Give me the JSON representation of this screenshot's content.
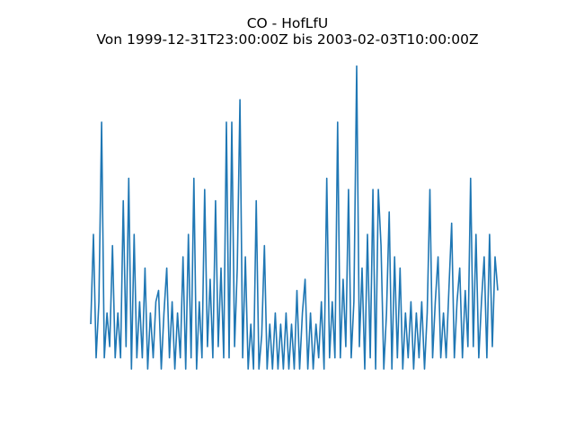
{
  "chart_data": {
    "type": "line",
    "title": "CO - HofLfU",
    "subtitle": "Von 1999-12-31T23:00:00Z bis 2003-02-03T10:00:00Z",
    "x_start": "1999-12-31T23:00:00Z",
    "x_end": "2003-02-03T10:00:00Z",
    "axes_visible": false,
    "grid": false,
    "color": "#1f77b4",
    "ylim": [
      0,
      2.7
    ],
    "series": [
      {
        "values": [
          0.4,
          1.2,
          0.1,
          0.6,
          2.2,
          0.1,
          0.5,
          0.2,
          1.1,
          0.1,
          0.5,
          0.1,
          1.5,
          0.2,
          1.7,
          0.0,
          1.2,
          0.1,
          0.6,
          0.1,
          0.9,
          0.0,
          0.5,
          0.1,
          0.6,
          0.7,
          0.0,
          0.5,
          0.9,
          0.1,
          0.6,
          0.0,
          0.5,
          0.1,
          1.0,
          0.0,
          1.2,
          0.1,
          1.7,
          0.0,
          0.6,
          0.1,
          1.6,
          0.2,
          0.8,
          0.1,
          1.5,
          0.2,
          0.9,
          0.1,
          2.2,
          0.1,
          2.2,
          0.2,
          0.9,
          2.4,
          0.1,
          1.0,
          0.0,
          0.4,
          0.0,
          1.5,
          0.0,
          0.3,
          1.1,
          0.0,
          0.4,
          0.0,
          0.5,
          0.0,
          0.4,
          0.0,
          0.5,
          0.0,
          0.4,
          0.0,
          0.7,
          0.0,
          0.5,
          0.8,
          0.0,
          0.5,
          0.0,
          0.4,
          0.1,
          0.6,
          0.0,
          1.7,
          0.1,
          0.6,
          0.1,
          2.2,
          0.1,
          0.8,
          0.2,
          1.6,
          0.1,
          0.6,
          2.7,
          0.2,
          0.9,
          0.0,
          1.2,
          0.1,
          1.6,
          0.0,
          1.6,
          1.1,
          0.0,
          0.5,
          1.4,
          0.0,
          1.0,
          0.1,
          0.9,
          0.0,
          0.5,
          0.1,
          0.6,
          0.0,
          0.5,
          0.1,
          0.6,
          0.0,
          0.5,
          1.6,
          0.1,
          0.6,
          1.0,
          0.1,
          0.5,
          0.1,
          0.7,
          1.3,
          0.1,
          0.6,
          0.9,
          0.1,
          0.7,
          0.2,
          1.7,
          0.2,
          1.2,
          0.1,
          0.6,
          1.0,
          0.1,
          1.2,
          0.2,
          1.0,
          0.7
        ]
      }
    ]
  }
}
